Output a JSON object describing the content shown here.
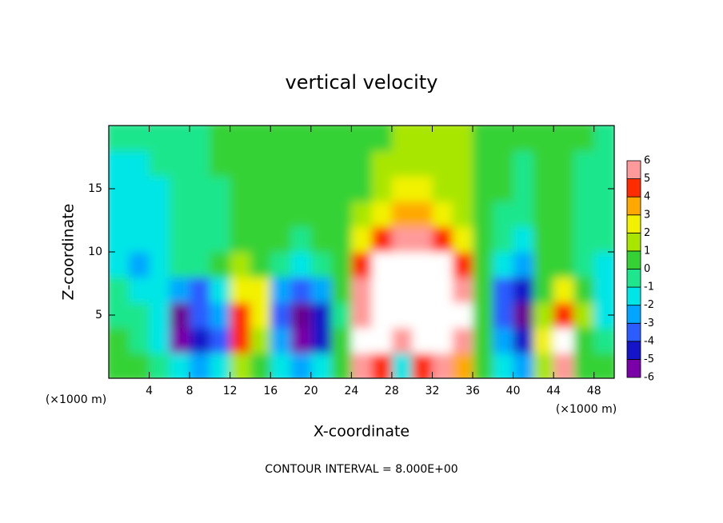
{
  "chart_data": {
    "type": "heatmap",
    "title": "vertical velocity",
    "x_label": "X-coordinate",
    "y_label": "Z-coordinate",
    "x_unit": "(×1000 m)",
    "y_unit": "(×1000 m)",
    "footnote": "CONTOUR INTERVAL = 8.000E+00",
    "xlim": [
      0,
      50
    ],
    "ylim": [
      0,
      20
    ],
    "xticks": [
      4,
      8,
      12,
      16,
      20,
      24,
      28,
      32,
      36,
      40,
      44,
      48
    ],
    "yticks": [
      5,
      10,
      15
    ],
    "x": [
      1,
      3,
      5,
      7,
      9,
      11,
      13,
      15,
      17,
      19,
      21,
      23,
      25,
      27,
      29,
      31,
      33,
      35,
      37,
      39,
      41,
      43,
      45,
      47,
      49
    ],
    "y": [
      1,
      3,
      5,
      7,
      9,
      11,
      13,
      15,
      17,
      19
    ],
    "z": [
      [
        0,
        0,
        -1,
        -2,
        -3,
        -2,
        1,
        0,
        -2,
        -3,
        -2,
        0,
        5,
        4,
        -2,
        4,
        5,
        3,
        0,
        -2,
        -3,
        1,
        5,
        0,
        0
      ],
      [
        0,
        -1,
        -2,
        -6,
        -5,
        -4,
        4,
        1,
        -3,
        -6,
        -5,
        0,
        6,
        8,
        5,
        8,
        9,
        5,
        0,
        -3,
        -5,
        2,
        7,
        0,
        -1
      ],
      [
        -1,
        -1,
        -2,
        -7,
        -4,
        -3,
        4,
        2,
        -4,
        -7,
        -5,
        -1,
        5,
        9,
        9,
        9,
        9,
        6,
        0,
        -4,
        -7,
        1,
        4,
        1,
        -2
      ],
      [
        -1,
        -2,
        -2,
        -3,
        -4,
        -2,
        2,
        2,
        -3,
        -4,
        -3,
        0,
        5,
        8,
        9,
        9,
        8,
        5,
        0,
        -4,
        -5,
        0,
        2,
        0,
        -2
      ],
      [
        -2,
        -3,
        -2,
        -1,
        -1,
        0,
        1,
        0,
        -1,
        -2,
        -1,
        0,
        4,
        6,
        7,
        7,
        6,
        4,
        0,
        -2,
        -3,
        0,
        0,
        -1,
        -2
      ],
      [
        -2,
        -2,
        -2,
        -1,
        -1,
        -1,
        0,
        0,
        0,
        -1,
        0,
        0,
        2,
        4,
        5,
        5,
        4,
        2,
        0,
        -1,
        -2,
        0,
        0,
        -1,
        -1
      ],
      [
        -2,
        -2,
        -2,
        -1,
        -1,
        -1,
        0,
        0,
        0,
        0,
        0,
        0,
        1,
        2,
        3,
        3,
        2,
        1,
        0,
        -1,
        -1,
        0,
        0,
        -1,
        -1
      ],
      [
        -2,
        -2,
        -2,
        -1,
        -1,
        -1,
        0,
        0,
        0,
        0,
        0,
        0,
        0,
        1,
        2,
        2,
        1,
        1,
        0,
        0,
        -1,
        0,
        0,
        -1,
        -1
      ],
      [
        -2,
        -2,
        -1,
        -1,
        -1,
        0,
        0,
        0,
        0,
        0,
        0,
        0,
        0,
        1,
        1,
        1,
        1,
        1,
        0,
        0,
        -1,
        0,
        0,
        -1,
        -1
      ],
      [
        -1,
        -1,
        -1,
        -1,
        -1,
        0,
        0,
        0,
        0,
        0,
        0,
        0,
        0,
        0,
        1,
        1,
        1,
        1,
        0,
        0,
        0,
        0,
        0,
        0,
        -1
      ]
    ],
    "colorbar": {
      "levels": [
        -6,
        -5,
        -4,
        -3,
        -2,
        -1,
        0,
        1,
        2,
        3,
        4,
        5,
        6
      ],
      "colors": [
        "#7a00a8",
        "#1414c8",
        "#2a5cff",
        "#00a6ff",
        "#00e6e6",
        "#1ee68c",
        "#34d234",
        "#a8e600",
        "#f2f200",
        "#ffa800",
        "#ff2c00",
        "#ff9a9a"
      ],
      "over_color": "#ffffff",
      "under_color": "#6a0090"
    }
  }
}
